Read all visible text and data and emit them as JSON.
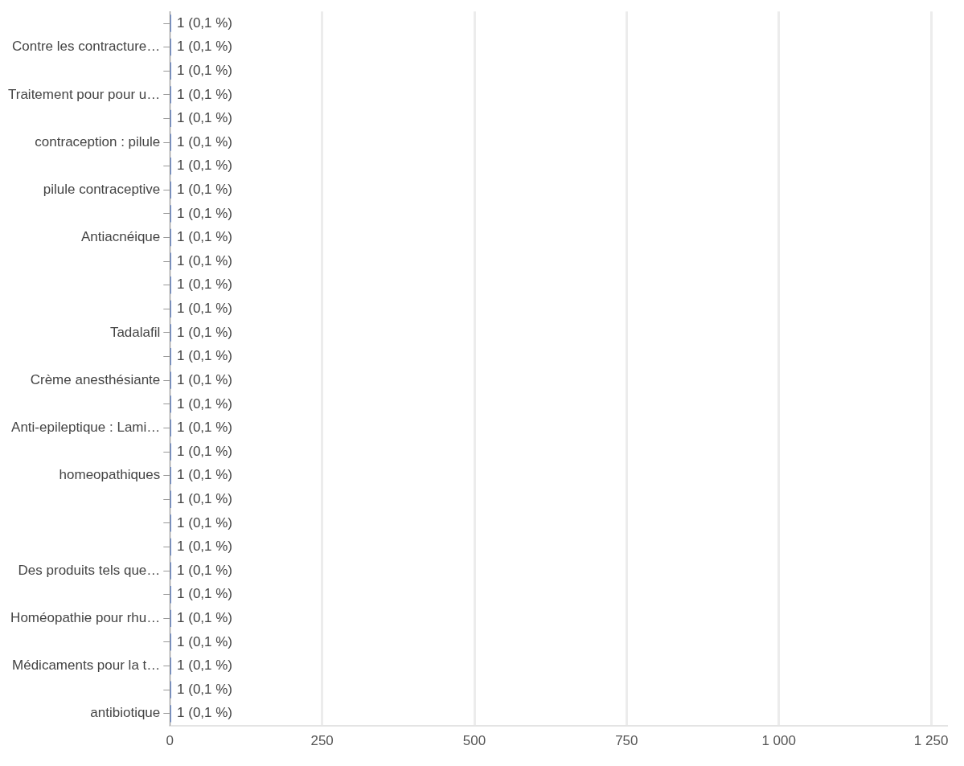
{
  "chart_data": {
    "type": "bar",
    "orientation": "horizontal",
    "categories": [
      null,
      "Contre les contracture…",
      null,
      "Traitement pour pour u…",
      null,
      "contraception : pilule",
      null,
      "pilule contraceptive",
      null,
      "Antiacnéique",
      null,
      null,
      null,
      "Tadalafil",
      null,
      "Crème anesthésiante",
      null,
      "Anti-epileptique : Lami…",
      null,
      "homeopathiques",
      null,
      null,
      null,
      "Des produits tels que…",
      null,
      "Homéopathie pour rhu…",
      null,
      "Médicaments pour la t…",
      null,
      "antibiotique"
    ],
    "values": [
      1,
      1,
      1,
      1,
      1,
      1,
      1,
      1,
      1,
      1,
      1,
      1,
      1,
      1,
      1,
      1,
      1,
      1,
      1,
      1,
      1,
      1,
      1,
      1,
      1,
      1,
      1,
      1,
      1,
      1
    ],
    "value_labels": [
      "1 (0,1 %)",
      "1 (0,1 %)",
      "1 (0,1 %)",
      "1 (0,1 %)",
      "1 (0,1 %)",
      "1 (0,1 %)",
      "1 (0,1 %)",
      "1 (0,1 %)",
      "1 (0,1 %)",
      "1 (0,1 %)",
      "1 (0,1 %)",
      "1 (0,1 %)",
      "1 (0,1 %)",
      "1 (0,1 %)",
      "1 (0,1 %)",
      "1 (0,1 %)",
      "1 (0,1 %)",
      "1 (0,1 %)",
      "1 (0,1 %)",
      "1 (0,1 %)",
      "1 (0,1 %)",
      "1 (0,1 %)",
      "1 (0,1 %)",
      "1 (0,1 %)",
      "1 (0,1 %)",
      "1 (0,1 %)",
      "1 (0,1 %)",
      "1 (0,1 %)",
      "1 (0,1 %)",
      "1 (0,1 %)"
    ],
    "color": "#3366cc",
    "xlim": [
      0,
      1275
    ],
    "xticks": [
      0,
      250,
      500,
      750,
      {
        "value": 1000,
        "label": "1 000"
      },
      {
        "value": 1250,
        "label": "1 250"
      }
    ],
    "grid": "x"
  }
}
